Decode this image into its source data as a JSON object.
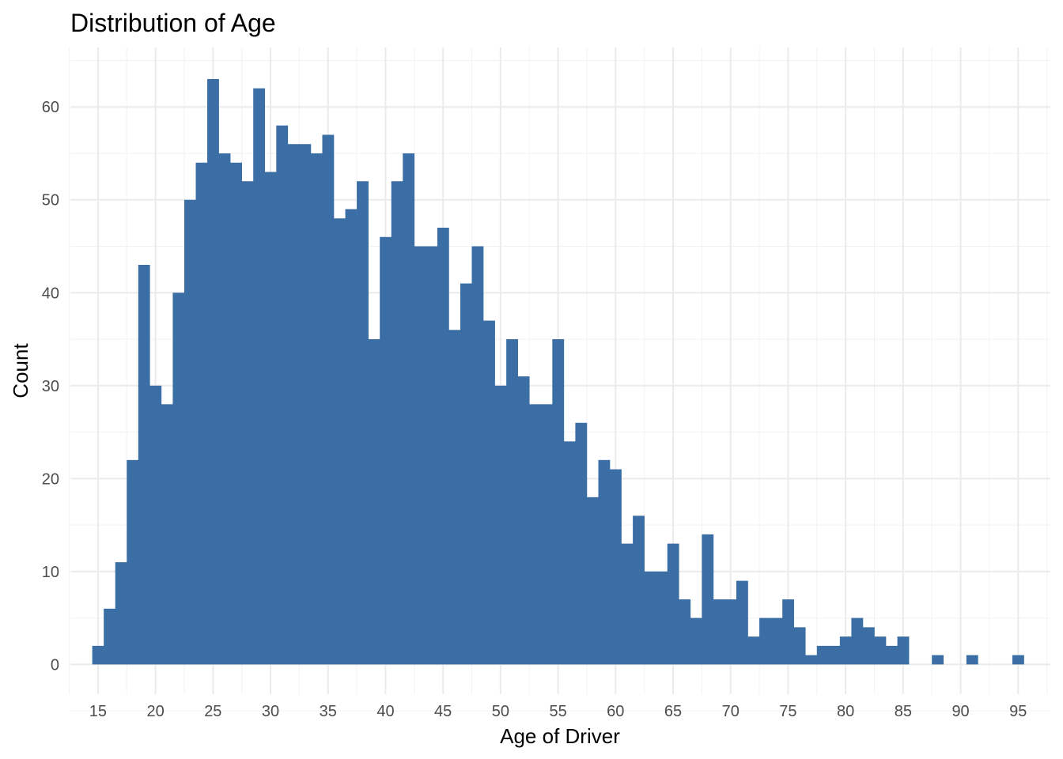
{
  "chart_data": {
    "type": "bar",
    "title": "Distribution of Age",
    "xlabel": "Age of Driver",
    "ylabel": "Count",
    "bar_color": "#3A6EA5",
    "grid": true,
    "legend": "none",
    "xlim": [
      12.6,
      97.8
    ],
    "ylim": [
      -3.2,
      66.4
    ],
    "x_ticks": [
      15,
      20,
      25,
      30,
      35,
      40,
      45,
      50,
      55,
      60,
      65,
      70,
      75,
      80,
      85,
      90,
      95
    ],
    "y_ticks": [
      0,
      10,
      20,
      30,
      40,
      50,
      60
    ],
    "x": [
      15,
      16,
      17,
      18,
      19,
      20,
      21,
      22,
      23,
      24,
      25,
      26,
      27,
      28,
      29,
      30,
      31,
      32,
      33,
      34,
      35,
      36,
      37,
      38,
      39,
      40,
      41,
      42,
      43,
      44,
      45,
      46,
      47,
      48,
      49,
      50,
      51,
      52,
      53,
      54,
      55,
      56,
      57,
      58,
      59,
      60,
      61,
      62,
      63,
      64,
      65,
      66,
      67,
      68,
      69,
      70,
      71,
      72,
      73,
      74,
      75,
      76,
      77,
      78,
      79,
      80,
      81,
      82,
      83,
      84,
      85,
      86,
      87,
      88,
      89,
      90,
      91,
      92,
      93,
      94,
      95
    ],
    "values": [
      2,
      6,
      11,
      22,
      43,
      30,
      28,
      40,
      50,
      54,
      63,
      55,
      54,
      52,
      62,
      53,
      58,
      56,
      56,
      55,
      57,
      48,
      49,
      52,
      35,
      46,
      52,
      55,
      45,
      45,
      47,
      36,
      41,
      45,
      37,
      30,
      35,
      31,
      28,
      28,
      35,
      24,
      26,
      18,
      22,
      21,
      13,
      16,
      10,
      10,
      13,
      7,
      5,
      14,
      7,
      7,
      9,
      3,
      5,
      5,
      7,
      4,
      1,
      2,
      2,
      3,
      5,
      4,
      3,
      2,
      3,
      0,
      0,
      1,
      0,
      0,
      1,
      0,
      0,
      0,
      1
    ]
  }
}
